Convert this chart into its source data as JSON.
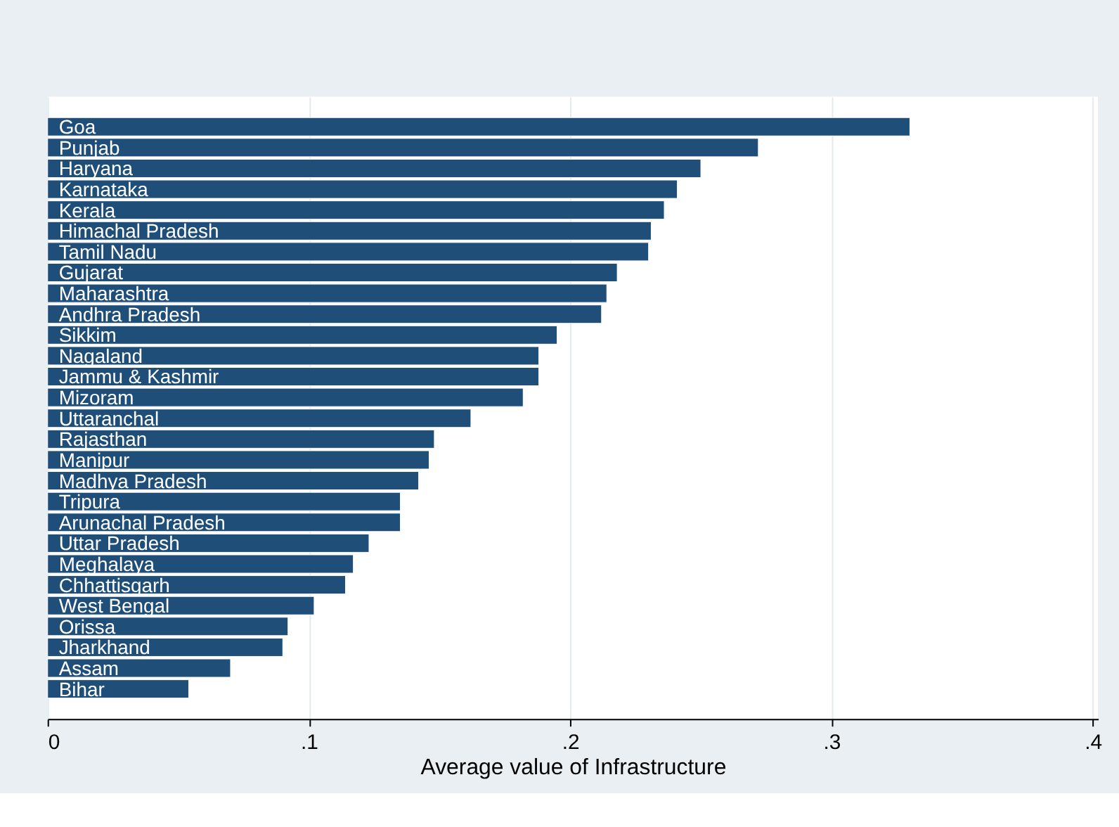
{
  "chart_data": {
    "type": "bar",
    "orientation": "horizontal",
    "xlabel": "Average  value of Infrastructure",
    "categories": [
      "Goa",
      "Punjab",
      "Haryana",
      "Karnataka",
      "Kerala",
      "Himachal Pradesh",
      "Tamil Nadu",
      "Gujarat",
      "Maharashtra",
      "Andhra Pradesh",
      "Sikkim",
      "Nagaland",
      "Jammu & Kashmir",
      "Mizoram",
      "Uttaranchal",
      "Rajasthan",
      "Manipur",
      "Madhya Pradesh",
      "Tripura",
      "Arunachal Pradesh",
      "Uttar Pradesh",
      "Meghalaya",
      "Chhattisgarh",
      "West Bengal",
      "Orissa",
      "Jharkhand",
      "Assam",
      "Bihar"
    ],
    "values": [
      0.33,
      0.272,
      0.25,
      0.241,
      0.236,
      0.231,
      0.23,
      0.218,
      0.214,
      0.212,
      0.195,
      0.188,
      0.188,
      0.182,
      0.162,
      0.148,
      0.146,
      0.142,
      0.135,
      0.135,
      0.123,
      0.117,
      0.114,
      0.102,
      0.092,
      0.09,
      0.07,
      0.054
    ],
    "color": "#1f4e79",
    "xlim": [
      0,
      0.402
    ],
    "xticks": [
      0,
      {
        "value": 0.1,
        "label": ".1"
      },
      {
        "value": 0.2,
        "label": ".2"
      },
      {
        "value": 0.3,
        "label": ".3"
      },
      {
        "value": 0.4,
        "label": ".4"
      }
    ],
    "grid": "x"
  }
}
